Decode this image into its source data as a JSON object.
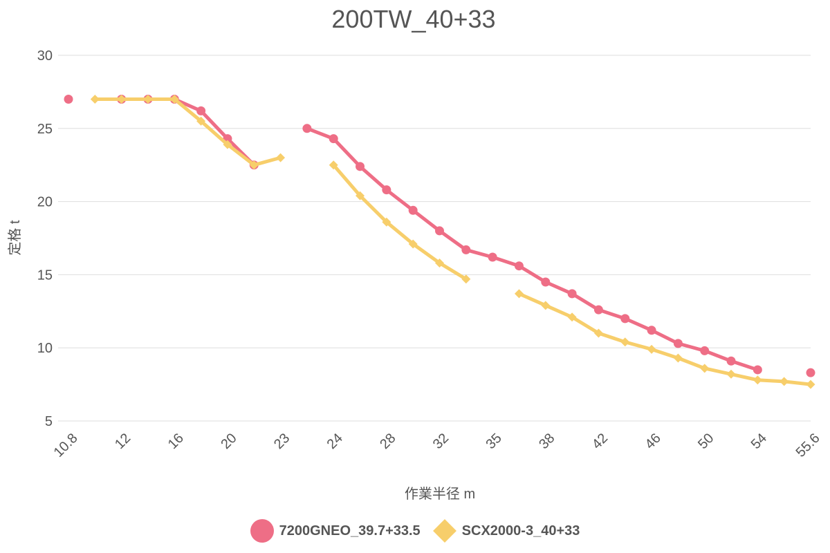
{
  "chart_data": {
    "type": "line",
    "title": "200TW_40+33",
    "xlabel": "作業半径 m",
    "ylabel": "定格 t",
    "ylim": [
      5,
      30
    ],
    "yticks": [
      5,
      10,
      15,
      20,
      25,
      30
    ],
    "grid": "horizontal",
    "legend_position": "bottom",
    "categories": [
      "10.8",
      "",
      "12",
      "",
      "16",
      "",
      "20",
      "",
      "23",
      "",
      "24",
      "",
      "28",
      "",
      "32",
      "",
      "35",
      "",
      "38",
      "",
      "42",
      "",
      "46",
      "",
      "50",
      "",
      "54",
      "",
      "55.6"
    ],
    "series": [
      {
        "name": "7200GNEO_39.7+33.5",
        "color": "#ee6e86",
        "marker": "circle",
        "values": [
          27,
          null,
          27,
          27,
          27,
          26.2,
          24.3,
          22.5,
          null,
          25,
          24.3,
          22.4,
          20.8,
          19.4,
          18,
          16.7,
          16.2,
          15.6,
          14.5,
          13.7,
          12.6,
          12,
          11.2,
          10.3,
          9.8,
          9.1,
          8.5,
          null,
          8.3
        ]
      },
      {
        "name": "SCX2000-3_40+33",
        "color": "#f7ce6b",
        "marker": "diamond",
        "values": [
          null,
          27,
          27,
          27,
          27,
          25.5,
          23.9,
          22.5,
          23,
          null,
          22.5,
          20.4,
          18.6,
          17.1,
          15.8,
          14.7,
          null,
          13.7,
          12.9,
          12.1,
          11,
          10.4,
          9.9,
          9.3,
          8.6,
          8.2,
          7.8,
          7.7,
          7.5
        ]
      }
    ]
  }
}
